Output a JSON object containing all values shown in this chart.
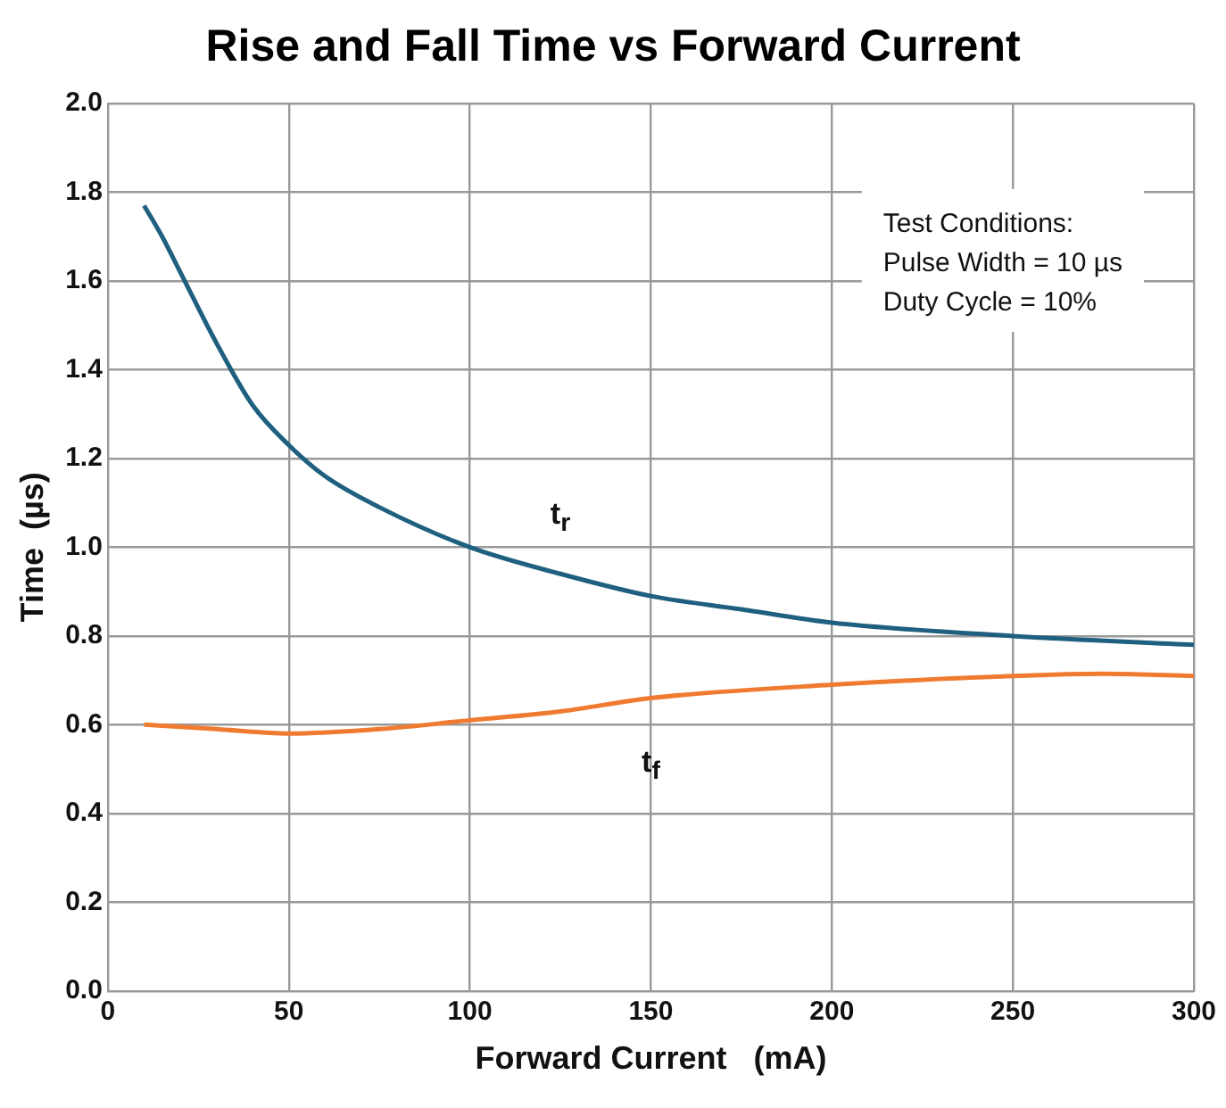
{
  "chart_data": {
    "type": "line",
    "title": "Rise and Fall Time vs Forward Current",
    "xlabel": "Forward Current   (mA)",
    "ylabel": "Time  (µs)",
    "xlim": [
      0,
      300
    ],
    "xticks": [
      0,
      50,
      100,
      150,
      200,
      250,
      300
    ],
    "ylim": [
      0,
      2.0
    ],
    "yticks": [
      {
        "value": 0,
        "label": "0.0"
      },
      {
        "value": 0.2,
        "label": "0.2"
      },
      {
        "value": 0.4,
        "label": "0.4"
      },
      {
        "value": 0.6,
        "label": "0.6"
      },
      {
        "value": 0.8,
        "label": "0.8"
      },
      {
        "value": 1.0,
        "label": "1.0"
      },
      {
        "value": 1.2,
        "label": "1.2"
      },
      {
        "value": 1.4,
        "label": "1.4"
      },
      {
        "value": 1.6,
        "label": "1.6"
      },
      {
        "value": 1.8,
        "label": "1.8"
      },
      {
        "value": 2.0,
        "label": "2.0"
      }
    ],
    "grid": true,
    "legend": false,
    "marker": "none",
    "line_style": "solid",
    "series": [
      {
        "name": "t$_{r}$",
        "color": "#1f5f7f",
        "x": [
          10,
          15,
          20,
          30,
          40,
          50,
          60,
          75,
          100,
          125,
          150,
          175,
          200,
          250,
          300
        ],
        "values": [
          1.77,
          1.7,
          1.62,
          1.46,
          1.32,
          1.23,
          1.16,
          1.09,
          1.0,
          0.94,
          0.89,
          0.86,
          0.83,
          0.8,
          0.78
        ]
      },
      {
        "name": "t$_{f}$",
        "color": "#f07a30",
        "x": [
          10,
          30,
          50,
          75,
          100,
          125,
          150,
          200,
          250,
          275,
          300
        ],
        "values": [
          0.6,
          0.59,
          0.58,
          0.59,
          0.61,
          0.63,
          0.66,
          0.69,
          0.71,
          0.715,
          0.71
        ]
      }
    ],
    "annotations": [
      "Test Conditions:",
      "Pulse Width = 10 µs",
      "Duty Cycle = 10%"
    ]
  }
}
